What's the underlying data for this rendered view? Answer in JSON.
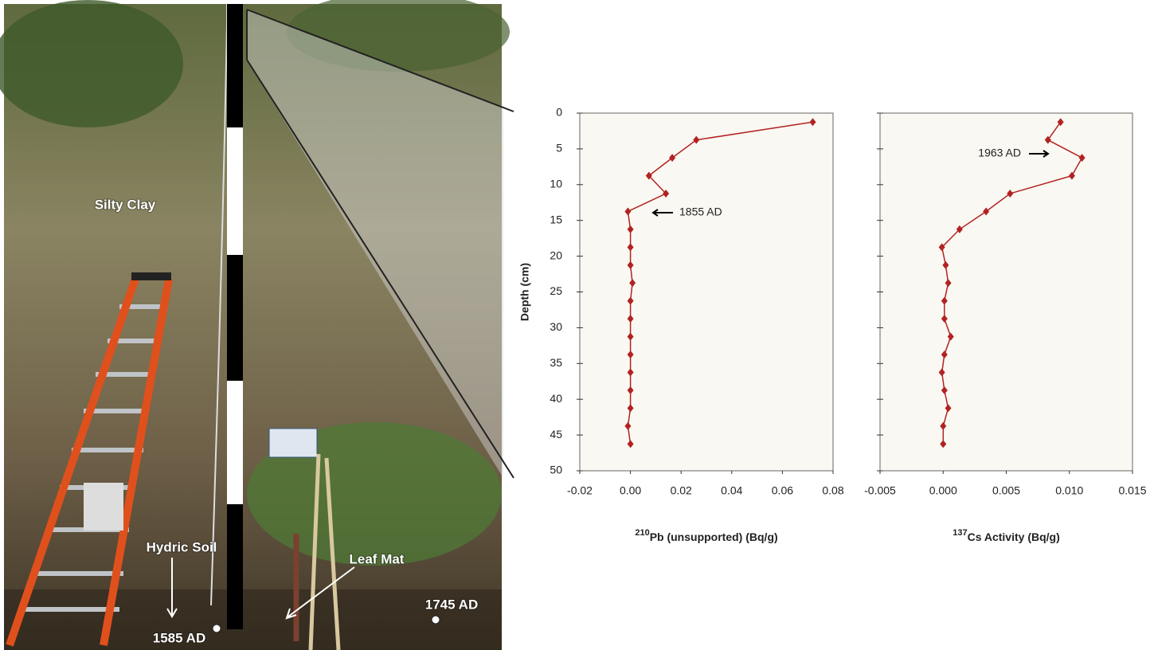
{
  "photo_labels": [
    "Silty Clay",
    "Hydric Soil",
    "Leaf Mat",
    "1745 AD",
    "1585 AD"
  ],
  "chart_data": [
    {
      "type": "line",
      "ylabel": "Depth (cm)",
      "xlabel_sup": "210",
      "xlabel": "Pb (unsupported)  (Bq/g)",
      "annotation": "1855 AD",
      "y": [
        1.25,
        3.75,
        6.25,
        8.75,
        11.25,
        13.75,
        16.25,
        18.75,
        21.25,
        23.75,
        26.25,
        28.75,
        31.25,
        33.75,
        36.25,
        38.75,
        41.25,
        43.75,
        46.25
      ],
      "series": [
        {
          "color": "#b22222",
          "values": [
            0.072,
            0.026,
            0.0165,
            0.0073,
            0.014,
            -0.001,
            0,
            0,
            0,
            0.0008,
            0,
            0,
            0,
            0,
            0,
            0,
            0,
            -0.001,
            0
          ]
        }
      ],
      "xlim": [
        -0.02,
        0.08
      ],
      "xticks": [
        -0.02,
        {
          "value": 0,
          "label": "0.00"
        },
        0.02,
        0.04,
        0.06,
        0.08
      ],
      "ylim": [
        0,
        50
      ],
      "yticks": [
        0,
        5,
        10,
        15,
        20,
        25,
        30,
        35,
        40,
        45,
        50
      ],
      "y_reversed": true,
      "ytick_labels": true
    },
    {
      "type": "line",
      "xlabel_sup": "137",
      "xlabel": "Cs Activity (Bq/g)",
      "annotation": "1963 AD",
      "y": [
        1.25,
        3.75,
        6.25,
        8.75,
        11.25,
        13.75,
        16.25,
        18.75,
        21.25,
        23.75,
        26.25,
        28.75,
        31.25,
        33.75,
        36.25,
        38.75,
        41.25,
        43.75,
        46.25
      ],
      "series": [
        {
          "color": "#b22222",
          "values": [
            0.0093,
            0.0083,
            0.011,
            0.0102,
            0.0053,
            0.0034,
            0.0013,
            -0.0001,
            0.0002,
            0.0004,
            0.0001,
            0.0001,
            0.0006,
            0.0001,
            -0.0001,
            0.0001,
            0.0004,
            0,
            0
          ]
        }
      ],
      "xlim": [
        -0.005,
        0.015
      ],
      "xticks": [
        -0.005,
        {
          "value": 0,
          "label": "0.000"
        },
        0.005,
        {
          "value": 0.01,
          "label": "0.010"
        },
        0.015
      ],
      "ylim": [
        0,
        50
      ],
      "yticks": [
        0,
        5,
        10,
        15,
        20,
        25,
        30,
        35,
        40,
        45,
        50
      ],
      "y_reversed": true,
      "ytick_labels": false
    }
  ]
}
